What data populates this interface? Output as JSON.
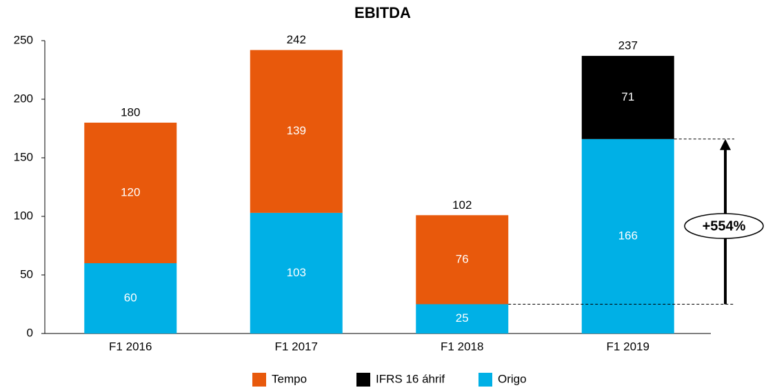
{
  "chart_data": {
    "type": "stacked_bar",
    "title": "EBITDA",
    "categories": [
      "F1 2016",
      "F1 2017",
      "F1 2018",
      "F1 2019"
    ],
    "series": [
      {
        "name": "Tempo",
        "color": "#e8590c",
        "values": [
          120,
          139,
          76,
          null
        ]
      },
      {
        "name": "IFRS 16 áhrif",
        "color": "#000000",
        "values": [
          null,
          null,
          null,
          71
        ]
      },
      {
        "name": "Origo",
        "color": "#00b0e6",
        "values": [
          60,
          103,
          25,
          166
        ]
      }
    ],
    "totals": [
      180,
      242,
      102,
      237
    ],
    "annotation": "+554%",
    "ylim": [
      0,
      250
    ],
    "yticks": [
      0,
      50,
      100,
      150,
      200,
      250
    ],
    "grid": false,
    "legend": "bottom"
  }
}
